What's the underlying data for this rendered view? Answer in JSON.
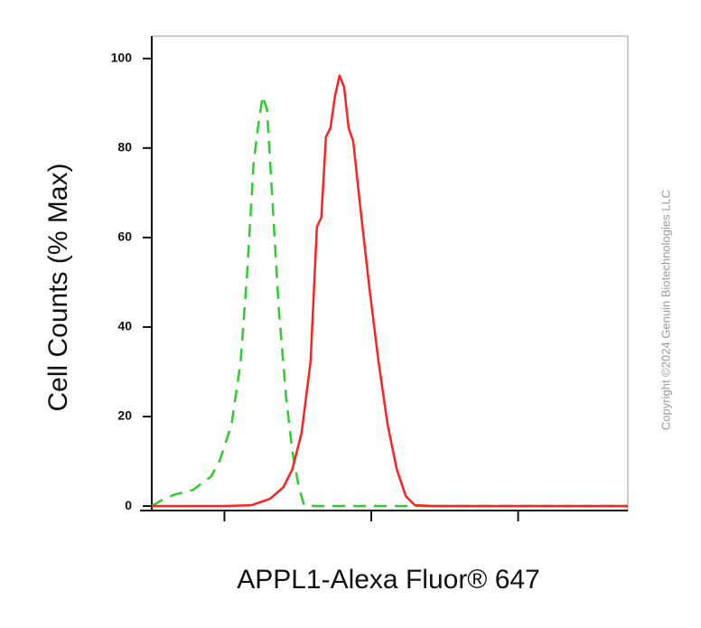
{
  "chart_data": {
    "type": "line",
    "x_label": "APPL1-Alexa Fluor® 647",
    "y_label": "Cell Counts (% Max)",
    "watermark": "Copyright ©2024 Genuin Biotechnologies LLC",
    "xscale": "log",
    "xlim": [
      3.2,
      5585
    ],
    "xticks": [
      10,
      100,
      1000
    ],
    "ylim": [
      -1,
      105
    ],
    "yticks": [
      0,
      20,
      40,
      60,
      80,
      100
    ],
    "series": [
      {
        "color": "#2ecc2e",
        "dash": true,
        "x": [
          3.2,
          3.7,
          4.6,
          6.1,
          8.1,
          9.3,
          11.2,
          12.9,
          14.3,
          15.8,
          16.9,
          18.2,
          19.5,
          21.2,
          23.4,
          26.3,
          29.0,
          32.1,
          34.9,
          41.4,
          84.4,
          5585
        ],
        "values": [
          0,
          1.2,
          2.6,
          3.6,
          6.6,
          10.2,
          18.3,
          32.3,
          52.4,
          76.5,
          84.5,
          91.6,
          88.6,
          68.5,
          44.4,
          24.3,
          12.2,
          4.2,
          0.2,
          0,
          0,
          0
        ]
      },
      {
        "color": "#ff2020",
        "dash": false,
        "x": [
          3.2,
          10,
          15.3,
          20.4,
          25.2,
          29.0,
          33.5,
          38.6,
          42.6,
          45.7,
          49.1,
          52.7,
          56.6,
          60.8,
          65.3,
          70.1,
          75.3,
          84.4,
          97.3,
          112,
          129,
          149,
          172,
          198,
          263,
          5585
        ],
        "values": [
          0,
          0,
          0.2,
          1.6,
          4.2,
          8.2,
          16.3,
          32.3,
          62.4,
          64.5,
          82.5,
          84.5,
          91.6,
          96.2,
          93.6,
          84.5,
          81.5,
          66.5,
          48.4,
          32.3,
          18.3,
          8.2,
          2.2,
          0.2,
          0,
          0
        ]
      }
    ]
  }
}
